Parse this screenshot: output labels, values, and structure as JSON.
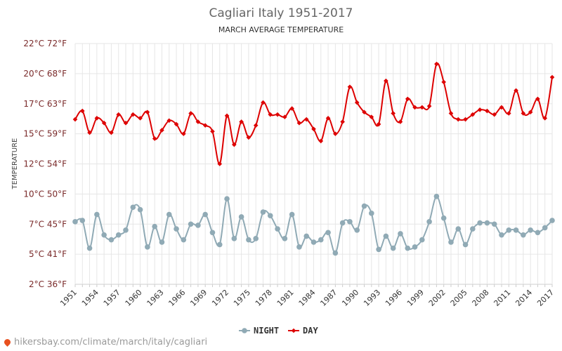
{
  "chart_data": {
    "type": "line",
    "title": "Cagliari Italy 1951-2017",
    "subtitle": "MARCH AVERAGE TEMPERATURE",
    "ylabel": "TEMPERATURE",
    "yticks": [
      "2°C 36°F",
      "5°C 41°F",
      "7°C 45°F",
      "10°C 50°F",
      "12°C 54°F",
      "15°C 59°F",
      "17°C 63°F",
      "20°C 68°F",
      "22°C 72°F"
    ],
    "ylim": [
      2.5,
      22.5
    ],
    "xlabels": [
      "1951",
      "1954",
      "1957",
      "1960",
      "1963",
      "1966",
      "1969",
      "1972",
      "1975",
      "1978",
      "1981",
      "1984",
      "1987",
      "1990",
      "1993",
      "1996",
      "1999",
      "2002",
      "2005",
      "2008",
      "2011",
      "2014",
      "2017"
    ],
    "x": [
      1951,
      1952,
      1953,
      1954,
      1955,
      1956,
      1957,
      1958,
      1959,
      1960,
      1961,
      1962,
      1963,
      1964,
      1965,
      1966,
      1967,
      1968,
      1969,
      1970,
      1971,
      1972,
      1973,
      1974,
      1975,
      1976,
      1977,
      1978,
      1979,
      1980,
      1981,
      1982,
      1983,
      1984,
      1985,
      1986,
      1987,
      1988,
      1989,
      1990,
      1991,
      1992,
      1993,
      1994,
      1995,
      1996,
      1997,
      1998,
      1999,
      2000,
      2001,
      2002,
      2003,
      2004,
      2005,
      2006,
      2007,
      2008,
      2009,
      2010,
      2011,
      2012,
      2013,
      2014,
      2015,
      2016,
      2017
    ],
    "series": [
      {
        "name": "DAY",
        "color": "#dd0000",
        "marker": "diamond",
        "values": [
          16.2,
          16.9,
          15.1,
          16.3,
          15.9,
          15.1,
          16.6,
          15.9,
          16.6,
          16.3,
          16.8,
          14.6,
          15.3,
          16.1,
          15.8,
          15.0,
          16.7,
          16.0,
          15.7,
          15.2,
          12.5,
          16.5,
          14.1,
          16.0,
          14.7,
          15.7,
          17.6,
          16.6,
          16.6,
          16.4,
          17.1,
          15.9,
          16.2,
          15.4,
          14.4,
          16.3,
          15.0,
          16.0,
          18.9,
          17.6,
          16.8,
          16.4,
          15.8,
          19.4,
          16.7,
          16.0,
          17.9,
          17.2,
          17.2,
          17.3,
          20.8,
          19.3,
          16.7,
          16.2,
          16.2,
          16.6,
          17.0,
          16.9,
          16.6,
          17.2,
          16.7,
          18.6,
          16.7,
          16.8,
          17.9,
          16.3,
          19.7
        ]
      },
      {
        "name": "NIGHT",
        "color": "#90aab5",
        "marker": "circle",
        "values": [
          7.7,
          7.8,
          5.5,
          8.3,
          6.6,
          6.2,
          6.6,
          7.0,
          8.9,
          8.7,
          5.6,
          7.3,
          6.0,
          8.3,
          7.1,
          6.2,
          7.5,
          7.4,
          8.3,
          6.8,
          5.8,
          9.6,
          6.3,
          8.1,
          6.2,
          6.3,
          8.5,
          8.2,
          7.1,
          6.3,
          8.3,
          5.6,
          6.5,
          6.0,
          6.2,
          6.8,
          5.1,
          7.6,
          7.7,
          7.0,
          9.0,
          8.4,
          5.4,
          6.5,
          5.5,
          6.7,
          5.5,
          5.6,
          6.2,
          7.7,
          9.8,
          8.0,
          6.0,
          7.1,
          5.8,
          7.1,
          7.6,
          7.6,
          7.5,
          6.6,
          7.0,
          7.0,
          6.6,
          7.0,
          6.8,
          7.2,
          7.8
        ]
      }
    ],
    "legend": [
      "NIGHT",
      "DAY"
    ],
    "legend_placement": "bottom-center",
    "grid": true
  },
  "source": {
    "text": "hikersbay.com/climate/march/italy/cagliari"
  }
}
